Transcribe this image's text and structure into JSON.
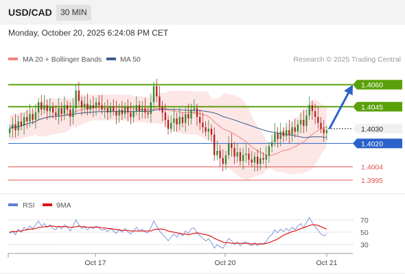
{
  "header": {
    "symbol": "USD/CAD",
    "timeframe": "30 MIN",
    "datetime": "Monday, October 20, 2025 6:24:08 PM CET"
  },
  "legend": {
    "ma20_label": "MA 20 + Bollinger Bands",
    "ma50_label": "MA 50",
    "copyright": "Research © 2025 Trading Central",
    "rsi_label": "RSI",
    "rsi_ma_label": "9MA"
  },
  "colors": {
    "ma20": "#f08080",
    "ma50": "#3a5a8c",
    "bollinger_fill": "#fde3e3",
    "candle_up": "#2e8b2e",
    "candle_down": "#b22222",
    "resistance": "#5aa00a",
    "current_price": "#222222",
    "support_blue": "#2a62c9",
    "support_red": "#e05050",
    "target_arrow": "#2a62c9",
    "rsi": "#5b7fd6",
    "rsi_ma": "#e01010"
  },
  "chart_data": [
    {
      "type": "candlestick",
      "title": "USD/CAD 30 MIN",
      "x_tick_labels": [
        "Oct 17",
        "Oct 20",
        "Oct 21"
      ],
      "ylim": [
        1.3988,
        1.4071
      ],
      "levels": [
        {
          "label": "1.4060",
          "value": 1.406,
          "kind": "resistance"
        },
        {
          "label": "1.4045",
          "value": 1.4045,
          "kind": "resistance"
        },
        {
          "label": "1.4030",
          "value": 1.403,
          "kind": "current"
        },
        {
          "label": "1.4020",
          "value": 1.402,
          "kind": "support"
        },
        {
          "label": "1.4004",
          "value": 1.4004,
          "kind": "support"
        },
        {
          "label": "1.3995",
          "value": 1.3995,
          "kind": "support"
        }
      ],
      "series": [
        {
          "name": "MA 20 + Bollinger Bands"
        },
        {
          "name": "MA 50"
        }
      ],
      "candle_closes": [
        1.403,
        1.4033,
        1.4029,
        1.4035,
        1.4032,
        1.4038,
        1.4035,
        1.404,
        1.4036,
        1.4041,
        1.4048,
        1.4043,
        1.4046,
        1.4042,
        1.4045,
        1.4041,
        1.4039,
        1.4044,
        1.404,
        1.4046,
        1.4043,
        1.4038,
        1.4044,
        1.4056,
        1.4049,
        1.4045,
        1.4047,
        1.4043,
        1.4046,
        1.4044,
        1.4048,
        1.4046,
        1.4043,
        1.4044,
        1.4041,
        1.4045,
        1.4042,
        1.4039,
        1.4043,
        1.404,
        1.4045,
        1.4041,
        1.4038,
        1.4042,
        1.4046,
        1.4042,
        1.4044,
        1.4041,
        1.404,
        1.4048,
        1.4059,
        1.4052,
        1.4045,
        1.4041,
        1.4036,
        1.403,
        1.4034,
        1.4037,
        1.4033,
        1.4038,
        1.4034,
        1.404,
        1.4037,
        1.4043,
        1.4044,
        1.4038,
        1.4034,
        1.4031,
        1.4028,
        1.403,
        1.4026,
        1.4012,
        1.4015,
        1.401,
        1.4006,
        1.4012,
        1.402,
        1.4017,
        1.4011,
        1.4014,
        1.4008,
        1.4012,
        1.4013,
        1.4009,
        1.4007,
        1.4011,
        1.4006,
        1.401,
        1.4009,
        1.4012,
        1.4018,
        1.4021,
        1.4027,
        1.4023,
        1.4028,
        1.4025,
        1.4029,
        1.4026,
        1.4031,
        1.4028,
        1.4033,
        1.4036,
        1.4032,
        1.4039,
        1.4046,
        1.4042,
        1.4038,
        1.4034,
        1.403,
        1.4027,
        1.4029
      ],
      "target_arrow": {
        "from": 1.403,
        "to": 1.406
      }
    },
    {
      "type": "line",
      "title": "RSI",
      "ylim": [
        20,
        80
      ],
      "y_ticks": [
        70,
        50,
        30
      ],
      "series": [
        {
          "name": "RSI",
          "values": [
            48,
            52,
            46,
            55,
            50,
            58,
            54,
            60,
            56,
            62,
            68,
            60,
            64,
            58,
            62,
            56,
            54,
            60,
            55,
            62,
            58,
            52,
            60,
            70,
            62,
            56,
            58,
            54,
            58,
            56,
            60,
            57,
            53,
            55,
            51,
            56,
            52,
            48,
            54,
            50,
            56,
            51,
            47,
            52,
            58,
            52,
            55,
            50,
            49,
            58,
            68,
            60,
            52,
            47,
            42,
            36,
            42,
            47,
            42,
            49,
            44,
            52,
            48,
            56,
            57,
            49,
            44,
            40,
            36,
            39,
            34,
            24,
            30,
            26,
            24,
            32,
            40,
            36,
            30,
            34,
            28,
            33,
            34,
            30,
            28,
            33,
            28,
            32,
            31,
            35,
            42,
            46,
            54,
            49,
            55,
            51,
            56,
            52,
            58,
            54,
            60,
            64,
            57,
            66,
            74,
            66,
            59,
            53,
            47,
            44,
            47
          ]
        },
        {
          "name": "9MA",
          "values": [
            50,
            51,
            51,
            52,
            52,
            53,
            54,
            55,
            55,
            56,
            58,
            58,
            59,
            59,
            60,
            60,
            59,
            59,
            59,
            59,
            59,
            58,
            58,
            59,
            60,
            59,
            59,
            58,
            58,
            58,
            58,
            58,
            57,
            57,
            56,
            56,
            55,
            54,
            54,
            53,
            53,
            53,
            52,
            52,
            52,
            52,
            52,
            52,
            52,
            52,
            54,
            55,
            55,
            55,
            54,
            52,
            51,
            50,
            49,
            48,
            47,
            47,
            46,
            47,
            48,
            49,
            48,
            47,
            46,
            45,
            43,
            40,
            38,
            36,
            34,
            33,
            33,
            32,
            32,
            32,
            32,
            32,
            32,
            32,
            31,
            31,
            31,
            31,
            31,
            32,
            33,
            35,
            37,
            39,
            42,
            45,
            47,
            49,
            51,
            52,
            54,
            56,
            57,
            59,
            61,
            62,
            62,
            61,
            59,
            57,
            55
          ]
        }
      ]
    }
  ]
}
